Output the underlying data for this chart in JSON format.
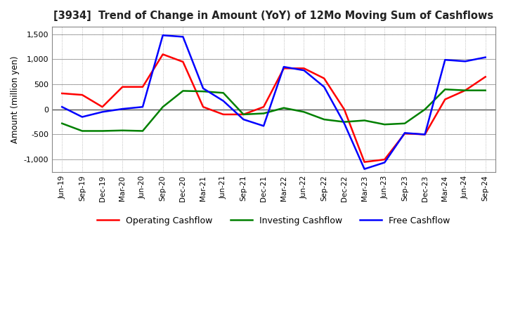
{
  "title": "[3934]  Trend of Change in Amount (YoY) of 12Mo Moving Sum of Cashflows",
  "ylabel": "Amount (million yen)",
  "ylim": [
    -1250,
    1650
  ],
  "yticks": [
    -1000,
    -500,
    0,
    500,
    1000,
    1500
  ],
  "background_color": "#ffffff",
  "grid_color": "#aaaaaa",
  "labels": [
    "Jun-19",
    "Sep-19",
    "Dec-19",
    "Mar-20",
    "Jun-20",
    "Sep-20",
    "Dec-20",
    "Mar-21",
    "Jun-21",
    "Sep-21",
    "Dec-21",
    "Mar-22",
    "Jun-22",
    "Sep-22",
    "Dec-22",
    "Mar-23",
    "Jun-23",
    "Sep-23",
    "Dec-23",
    "Mar-24",
    "Jun-24",
    "Sep-24"
  ],
  "operating": [
    320,
    290,
    50,
    450,
    450,
    1100,
    950,
    50,
    -100,
    -100,
    50,
    820,
    820,
    620,
    0,
    -1050,
    -1000,
    -480,
    -500,
    200,
    380,
    650
  ],
  "investing": [
    -280,
    -430,
    -430,
    -420,
    -430,
    50,
    370,
    360,
    330,
    -100,
    -80,
    30,
    -50,
    -200,
    -250,
    -220,
    -300,
    -280,
    0,
    400,
    380,
    380
  ],
  "free": [
    50,
    -150,
    -50,
    10,
    50,
    1480,
    1450,
    420,
    170,
    -200,
    -330,
    850,
    780,
    450,
    -280,
    -1190,
    -1060,
    -470,
    -500,
    990,
    960,
    1040
  ],
  "operating_color": "#ff0000",
  "investing_color": "#008000",
  "free_color": "#0000ff",
  "line_width": 1.8
}
